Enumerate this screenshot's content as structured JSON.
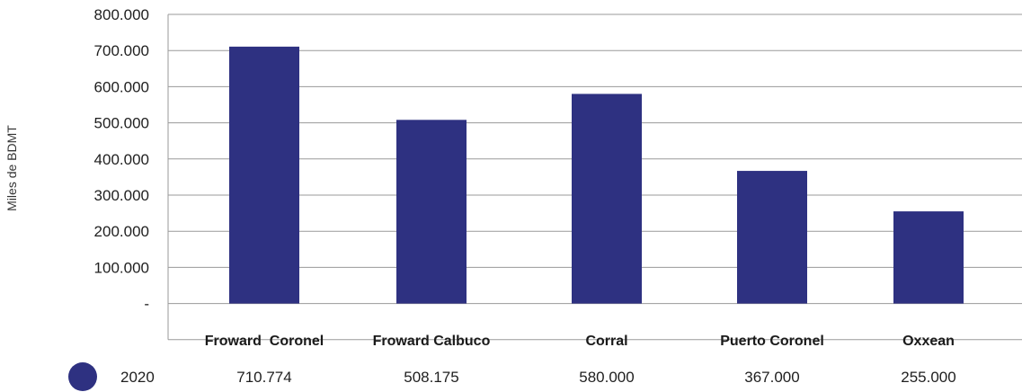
{
  "chart_data": {
    "type": "bar",
    "ylabel": "Miles de BDMT",
    "ylim": [
      -100000,
      800000
    ],
    "y_ticks": [
      800000,
      700000,
      600000,
      500000,
      400000,
      300000,
      200000,
      100000,
      0
    ],
    "y_tick_labels": [
      "800.000",
      "700.000",
      "600.000",
      "500.000",
      "400.000",
      "300.000",
      "200.000",
      "100.000",
      "-"
    ],
    "grid": true,
    "categories": [
      "Froward  Coronel",
      "Froward Calbuco",
      "Corral",
      "Puerto Coronel",
      "Oxxean"
    ],
    "series": [
      {
        "name": "2020",
        "values": [
          710774,
          508175,
          580000,
          367000,
          255000
        ],
        "value_labels": [
          "710.774",
          "508.175",
          "580.000",
          "367.000",
          "255.000"
        ],
        "color": "#2e3181"
      }
    ]
  }
}
